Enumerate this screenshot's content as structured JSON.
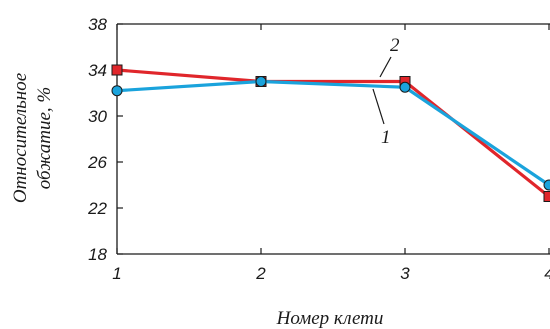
{
  "chart_data": {
    "type": "line",
    "xlabel": "Номер клети",
    "ylabel": "Относительное обжатие, %",
    "ylabel_lines": [
      "Относительное",
      "обжатие, %"
    ],
    "x": [
      1,
      2,
      3,
      4
    ],
    "xticks": [
      "1",
      "2",
      "3",
      "4"
    ],
    "yticks": [
      "18",
      "22",
      "26",
      "30",
      "34",
      "38"
    ],
    "ylim": [
      18,
      38
    ],
    "xlim": [
      1,
      4
    ],
    "grid": false,
    "series": [
      {
        "name": "1",
        "color": "#1aa3dc",
        "marker": "circle",
        "values": [
          32.2,
          33.0,
          32.5,
          24.0
        ]
      },
      {
        "name": "2",
        "color": "#e0262b",
        "marker": "square",
        "values": [
          34.0,
          33.0,
          33.0,
          23.0
        ]
      }
    ]
  }
}
